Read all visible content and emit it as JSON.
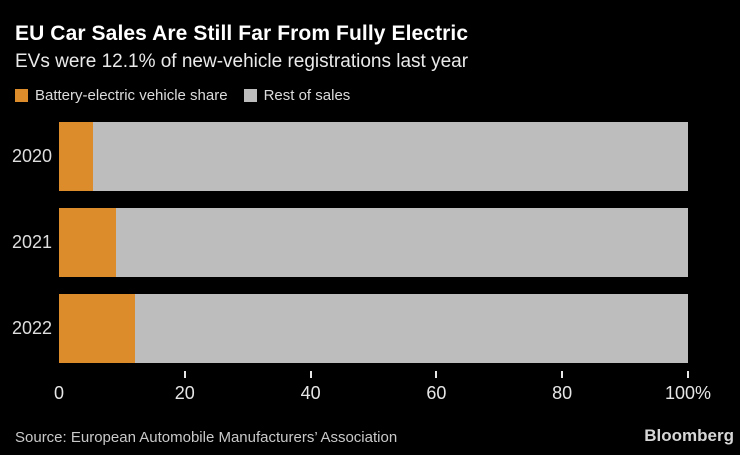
{
  "header": {
    "title": "EU Car Sales Are Still Far From Fully Electric",
    "subtitle": "EVs were 12.1% of new-vehicle registrations last year"
  },
  "legend": {
    "items": [
      {
        "label": "Battery-electric vehicle share",
        "color": "#DC8C2A"
      },
      {
        "label": "Rest of sales",
        "color": "#BDBDBD"
      }
    ]
  },
  "chart_data": {
    "type": "bar",
    "orientation": "horizontal",
    "stacked": true,
    "title": "EU Car Sales Are Still Far From Fully Electric",
    "subtitle": "EVs were 12.1% of new-vehicle registrations last year",
    "categories": [
      "2020",
      "2021",
      "2022"
    ],
    "series": [
      {
        "name": "Battery-electric vehicle share",
        "color": "#DC8C2A",
        "values": [
          5.4,
          9.1,
          12.1
        ]
      },
      {
        "name": "Rest of sales",
        "color": "#BDBDBD",
        "values": [
          94.6,
          90.9,
          87.9
        ]
      }
    ],
    "xlabel": "",
    "ylabel": "",
    "xlim": [
      0,
      100
    ],
    "x_ticks": [
      0,
      20,
      40,
      60,
      80,
      100
    ],
    "x_tick_labels": [
      "0",
      "20",
      "40",
      "60",
      "80",
      "100%"
    ],
    "grid": false,
    "legend_position": "top-left"
  },
  "footer": {
    "source": "Source: European Automobile Manufacturers’ Association",
    "brand": "Bloomberg"
  },
  "colors": {
    "background": "#000000",
    "title_text": "#FFFFFF",
    "subtitle_text": "#EAEAEA",
    "axis_text": "#E6E6E6",
    "year_text": "#DEDEDE",
    "source_text": "#C9C9C9",
    "brand_text": "#D6D6D6",
    "accent_orange": "#DC8C2A",
    "bar_gray": "#BDBDBD"
  }
}
